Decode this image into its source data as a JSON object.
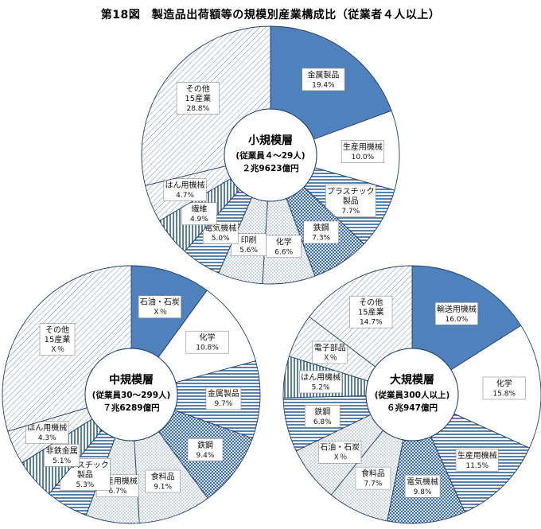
{
  "title": "第18図　製造品出荷額等の規模別産業構成比（従業者４人以上）",
  "chart_data": [
    {
      "type": "donut",
      "name": "小規模層",
      "subtitle": "(従業員４～29人)",
      "total": "２兆9623億円",
      "slices": [
        {
          "label": [
            "金属製品"
          ],
          "pct": "19.4%",
          "value": 19.4,
          "pattern": "solid",
          "color": "#4f81bd"
        },
        {
          "label": [
            "生産用機械"
          ],
          "pct": "10.0%",
          "value": 10.0,
          "pattern": "white"
        },
        {
          "label": [
            "プラスチック",
            "製品"
          ],
          "pct": "7.7%",
          "value": 7.7,
          "pattern": "hstripe"
        },
        {
          "label": [
            "鉄鋼"
          ],
          "pct": "7.3%",
          "value": 7.3,
          "pattern": "check"
        },
        {
          "label": [
            "化学"
          ],
          "pct": "6.6%",
          "value": 6.6,
          "pattern": "dots"
        },
        {
          "label": [
            "印刷"
          ],
          "pct": "5.6%",
          "value": 5.6,
          "pattern": "dots"
        },
        {
          "label": [
            "電気機械"
          ],
          "pct": "5.0%",
          "value": 5.0,
          "pattern": "hstripe"
        },
        {
          "label": [
            "繊維"
          ],
          "pct": "4.9%",
          "value": 4.9,
          "pattern": "vstripe"
        },
        {
          "label": [
            "はん用機械"
          ],
          "pct": "4.7%",
          "value": 4.7,
          "pattern": "diag"
        },
        {
          "label": [
            "その他",
            "15産業"
          ],
          "pct": "28.8%",
          "value": 28.8,
          "pattern": "diag"
        }
      ]
    },
    {
      "type": "donut",
      "name": "中規模層",
      "subtitle": "(従業員30～299人)",
      "total": "７兆6289億円",
      "slices": [
        {
          "label": [
            "石油・石炭"
          ],
          "pct": "Ｘ％",
          "value": 10.0,
          "pattern": "solid",
          "color": "#4f81bd"
        },
        {
          "label": [
            "化学"
          ],
          "pct": "10.8%",
          "value": 10.8,
          "pattern": "white"
        },
        {
          "label": [
            "金属製品"
          ],
          "pct": "9.7%",
          "value": 9.7,
          "pattern": "hstripe"
        },
        {
          "label": [
            "鉄鋼"
          ],
          "pct": "9.4%",
          "value": 9.4,
          "pattern": "check"
        },
        {
          "label": [
            "食料品"
          ],
          "pct": "9.1%",
          "value": 9.1,
          "pattern": "dots"
        },
        {
          "label": [
            "生産用機械"
          ],
          "pct": "6.7%",
          "value": 6.7,
          "pattern": "dots"
        },
        {
          "label": [
            "プラスチック",
            "製品"
          ],
          "pct": "5.3%",
          "value": 5.3,
          "pattern": "hstripe"
        },
        {
          "label": [
            "非鉄金属"
          ],
          "pct": "5.1%",
          "value": 5.1,
          "pattern": "vstripe"
        },
        {
          "label": [
            "はん用機械"
          ],
          "pct": "4.3%",
          "value": 4.3,
          "pattern": "diag"
        },
        {
          "label": [
            "その他",
            "15産業"
          ],
          "pct": "Ｘ％",
          "value": 29.6,
          "pattern": "diag"
        }
      ]
    },
    {
      "type": "donut",
      "name": "大規模層",
      "subtitle": "(従業員300人以上)",
      "total": "６兆947億円",
      "slices": [
        {
          "label": [
            "輸送用機械"
          ],
          "pct": "16.0%",
          "value": 16.0,
          "pattern": "solid",
          "color": "#4f81bd"
        },
        {
          "label": [
            "化学"
          ],
          "pct": "15.8%",
          "value": 15.8,
          "pattern": "white"
        },
        {
          "label": [
            "生産用機械"
          ],
          "pct": "11.5%",
          "value": 11.5,
          "pattern": "hstripe"
        },
        {
          "label": [
            "電気機械"
          ],
          "pct": "9.8%",
          "value": 9.8,
          "pattern": "check"
        },
        {
          "label": [
            "食料品"
          ],
          "pct": "7.7%",
          "value": 7.7,
          "pattern": "dots"
        },
        {
          "label": [
            "石油・石炭"
          ],
          "pct": "Ｘ％",
          "value": 7.0,
          "pattern": "dots"
        },
        {
          "label": [
            "鉄鋼"
          ],
          "pct": "6.8%",
          "value": 6.8,
          "pattern": "hstripe"
        },
        {
          "label": [
            "はん用機械"
          ],
          "pct": "5.2%",
          "value": 5.2,
          "pattern": "vstripe"
        },
        {
          "label": [
            "電子部品"
          ],
          "pct": "Ｘ％",
          "value": 5.5,
          "pattern": "diag"
        },
        {
          "label": [
            "その他",
            "15産業"
          ],
          "pct": "14.7%",
          "value": 14.7,
          "pattern": "diag"
        }
      ]
    }
  ]
}
